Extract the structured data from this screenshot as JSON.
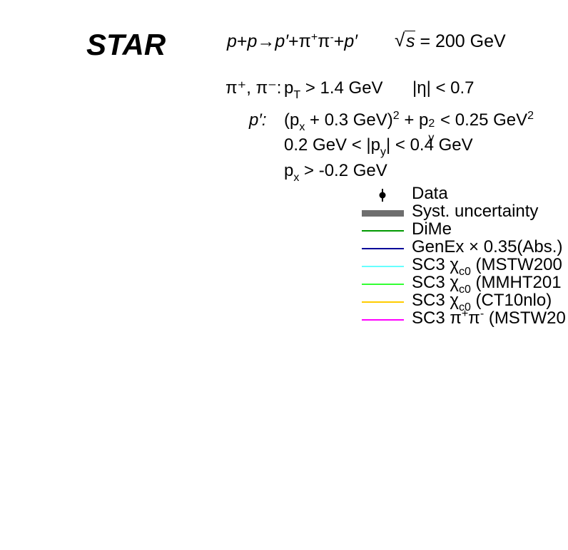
{
  "experiment_label": "STAR",
  "process": {
    "p1": "p",
    "plus": "+",
    "p2": "p",
    "arrow": "→",
    "prime1": "p′",
    "plus2": "+π",
    "pip_sup": "+",
    "pi": "π",
    "pim_sup": "-",
    "plus3": "+",
    "prime2": "p′"
  },
  "energy": {
    "sqrt_symbol": "√",
    "s": "s",
    "value": "= 200 GeV"
  },
  "cuts": {
    "pion_label": "π⁺, π⁻:",
    "pt_p": "p",
    "pt_sub": "T",
    "pt_rest": "> 1.4 GeV",
    "eta_cut": "|η| < 0.7",
    "proton_label": "p′:",
    "line1": {
      "a": "(p",
      "a_sub": "x",
      "b": "+ 0.3 GeV)",
      "b_sup": "2",
      "c": "+ p",
      "c_sup": "2",
      "c_sub": "y",
      "d": "< 0.25 GeV",
      "d_sup": "2"
    },
    "line2": {
      "a": "0.2 GeV < |p",
      "a_sub": "y",
      "b": "| < 0.4 GeV"
    },
    "line3": {
      "a": "p",
      "a_sub": "x",
      "b": "> -0.2 GeV"
    }
  },
  "chart_data": {
    "type": "line",
    "legend_placement": "top-right",
    "series": [
      {
        "name": "Data",
        "style": "marker",
        "color": "#000000"
      },
      {
        "name": "Syst. uncertainty",
        "style": "band",
        "color": "#6e6e6e"
      },
      {
        "name": "DiMe",
        "style": "line",
        "color": "#009900"
      },
      {
        "name": "GenEx × 0.35(Abs.)",
        "style": "line",
        "color": "#000099"
      },
      {
        "name": "SC3 χc0 (MSTW200",
        "style": "line",
        "color": "#66ffff"
      },
      {
        "name": "SC3 χc0 (MMHT201",
        "style": "line",
        "color": "#33ff33"
      },
      {
        "name": "SC3 χc0 (CT10nlo)",
        "style": "line",
        "color": "#ffcc00"
      },
      {
        "name": "SC3 π+π- (MSTW20",
        "style": "line",
        "color": "#ff00ff"
      }
    ],
    "legend_text": {
      "data": "Data",
      "syst": "Syst. uncertainty",
      "dime": "DiMe",
      "genex": "GenEx × 0.35(Abs.)",
      "sc3": "SC3 χ",
      "chi_sub": "c0",
      "mstw_chi": " (MSTW200",
      "mmht_chi": " (MMHT201",
      "ct10_chi": " (CT10nlo)",
      "pipi_a": "SC3 π",
      "pipi_sup1": "+",
      "pipi_b": "π",
      "pipi_sup2": "-",
      "pipi_c": " (MSTW20"
    }
  }
}
